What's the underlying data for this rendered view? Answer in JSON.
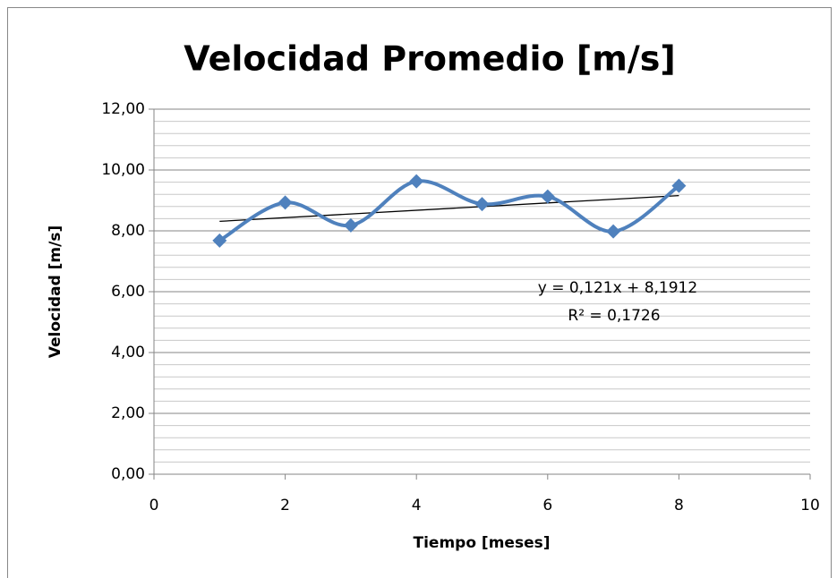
{
  "chart_data": {
    "type": "scatter-smooth",
    "title": "Velocidad Promedio [m/s]",
    "x_label": "Tiempo [meses]",
    "y_label": "Velocidad [m/s]",
    "x": [
      1,
      2,
      3,
      4,
      5,
      6,
      7,
      8
    ],
    "series": [
      {
        "color": "#4f81bd",
        "values": [
          7.68,
          8.93,
          8.18,
          9.63,
          8.88,
          9.13,
          7.98,
          9.48
        ]
      }
    ],
    "xlim": [
      0,
      10
    ],
    "ylim": [
      0,
      12
    ],
    "xticks": [
      0,
      2,
      4,
      6,
      8,
      10
    ],
    "yticks": [
      {
        "value": 0,
        "label": "0,00"
      },
      {
        "value": 2,
        "label": "2,00"
      },
      {
        "value": 4,
        "label": "4,00"
      },
      {
        "value": 6,
        "label": "6,00"
      },
      {
        "value": 8,
        "label": "8,00"
      },
      {
        "value": 10,
        "label": "10,00"
      },
      {
        "value": 12,
        "label": "12,00"
      }
    ],
    "grid": true,
    "minor_grid_step": 0.4,
    "trendline": {
      "slope": 0.121,
      "intercept": 8.1912,
      "color": "#000000",
      "equation": "y = 0,121x + 8,1912",
      "r_squared": 0.1726,
      "r_squared_label": "R² = 0,1726"
    }
  }
}
